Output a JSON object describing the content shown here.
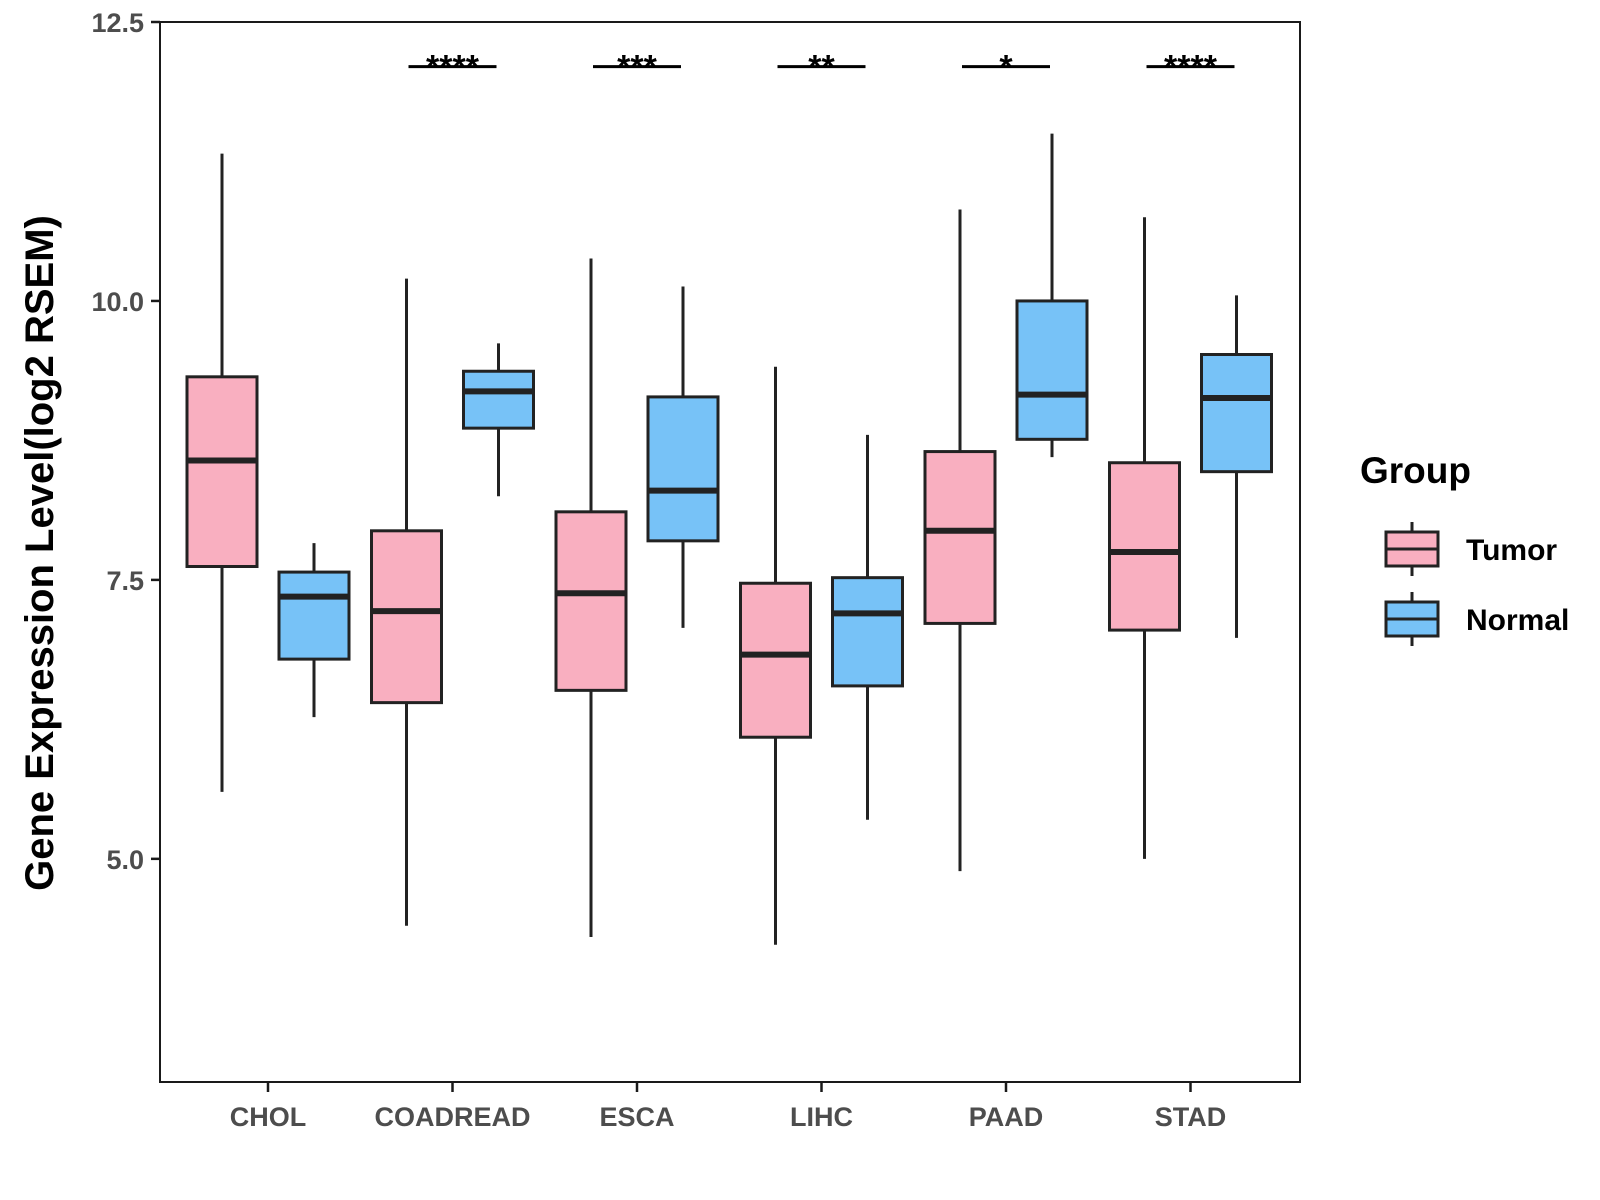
{
  "chart_data": {
    "type": "boxplot",
    "ylabel": "Gene Expression Level(log2 RSEM)",
    "xlabel": "",
    "ylim": [
      3.0,
      12.5
    ],
    "yticks": [
      5.0,
      7.5,
      10.0,
      12.5
    ],
    "ytick_labels": [
      "5.0",
      "7.5",
      "10.0",
      "12.5"
    ],
    "categories": [
      "CHOL",
      "COADREAD",
      "ESCA",
      "LIHC",
      "PAAD",
      "STAD"
    ],
    "legend": {
      "title": "Group",
      "position": "right"
    },
    "series": [
      {
        "name": "Tumor",
        "color": "#F9AFC0",
        "boxes": [
          {
            "min": 5.6,
            "q1": 7.62,
            "median": 8.57,
            "q3": 9.32,
            "max": 11.32
          },
          {
            "min": 4.4,
            "q1": 6.4,
            "median": 7.22,
            "q3": 7.94,
            "max": 10.2
          },
          {
            "min": 4.3,
            "q1": 6.51,
            "median": 7.38,
            "q3": 8.11,
            "max": 10.38
          },
          {
            "min": 4.23,
            "q1": 6.09,
            "median": 6.83,
            "q3": 7.47,
            "max": 9.41
          },
          {
            "min": 4.89,
            "q1": 7.11,
            "median": 7.94,
            "q3": 8.65,
            "max": 10.82
          },
          {
            "min": 5.0,
            "q1": 7.05,
            "median": 7.75,
            "q3": 8.55,
            "max": 10.75
          }
        ]
      },
      {
        "name": "Normal",
        "color": "#77C2F7",
        "boxes": [
          {
            "min": 6.27,
            "q1": 6.79,
            "median": 7.35,
            "q3": 7.57,
            "max": 7.83
          },
          {
            "min": 8.25,
            "q1": 8.86,
            "median": 9.19,
            "q3": 9.37,
            "max": 9.62
          },
          {
            "min": 7.07,
            "q1": 7.85,
            "median": 8.3,
            "q3": 9.14,
            "max": 10.13
          },
          {
            "min": 5.35,
            "q1": 6.55,
            "median": 7.2,
            "q3": 7.52,
            "max": 8.8
          },
          {
            "min": 8.6,
            "q1": 8.76,
            "median": 9.16,
            "q3": 10.0,
            "max": 11.5
          },
          {
            "min": 6.98,
            "q1": 8.47,
            "median": 9.13,
            "q3": 9.52,
            "max": 10.05
          }
        ]
      }
    ],
    "significance": [
      {
        "category": "COADREAD",
        "label": "****",
        "y": 12.1
      },
      {
        "category": "ESCA",
        "label": "***",
        "y": 12.1
      },
      {
        "category": "LIHC",
        "label": "**",
        "y": 12.1
      },
      {
        "category": "PAAD",
        "label": "*",
        "y": 12.1
      },
      {
        "category": "STAD",
        "label": "****",
        "y": 12.1
      }
    ]
  }
}
